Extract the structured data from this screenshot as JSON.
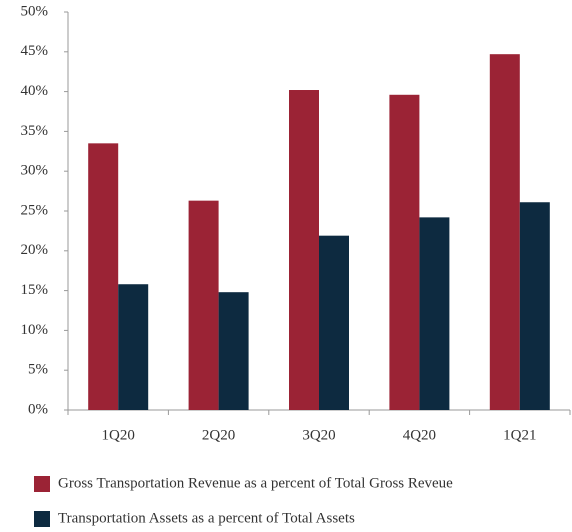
{
  "chart_data": {
    "type": "bar",
    "categories": [
      "1Q20",
      "2Q20",
      "3Q20",
      "4Q20",
      "1Q21"
    ],
    "series": [
      {
        "name": "Gross Transportation Revenue as a percent of Total Gross Reveue",
        "color": "#9b2335",
        "values": [
          33.5,
          26.3,
          40.2,
          39.6,
          44.7
        ]
      },
      {
        "name": "Transportation Assets as a percent of Total Assets",
        "color": "#0d2a40",
        "values": [
          15.8,
          14.8,
          21.9,
          24.2,
          26.1
        ]
      }
    ],
    "ylim": [
      0,
      50
    ],
    "yticks": [
      {
        "value": 0,
        "label": "0%"
      },
      {
        "value": 5,
        "label": "5%"
      },
      {
        "value": 10,
        "label": "10%"
      },
      {
        "value": 15,
        "label": "15%"
      },
      {
        "value": 20,
        "label": "20%"
      },
      {
        "value": 25,
        "label": "25%"
      },
      {
        "value": 30,
        "label": "30%"
      },
      {
        "value": 35,
        "label": "35%"
      },
      {
        "value": 40,
        "label": "40%"
      },
      {
        "value": 45,
        "label": "45%"
      },
      {
        "value": 50,
        "label": "50%"
      }
    ],
    "grid": false,
    "legend": "bottom"
  }
}
